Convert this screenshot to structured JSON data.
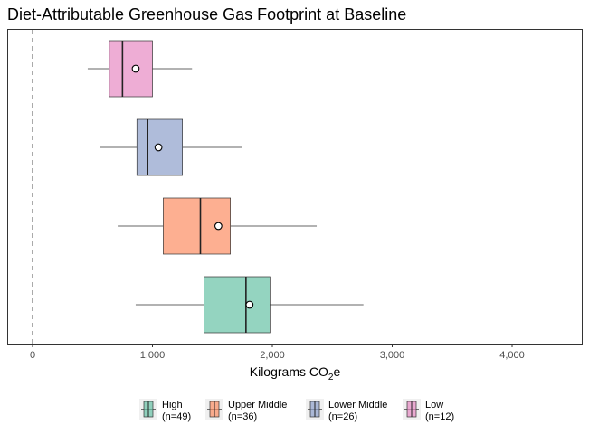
{
  "chart_data": {
    "type": "boxplot",
    "orientation": "horizontal",
    "title": "Diet-Attributable Greenhouse Gas Footprint at Baseline",
    "xlabel": {
      "main": "Kilograms CO",
      "sub": "2",
      "tail": "e"
    },
    "ylabel": "",
    "xlim": [
      -200,
      4600
    ],
    "xticks": [
      0,
      1000,
      2000,
      3000,
      4000
    ],
    "xtick_labels": [
      "0",
      "1,000",
      "2,000",
      "3,000",
      "4,000"
    ],
    "reference_line": {
      "x": 0,
      "style": "dashed"
    },
    "grid": false,
    "legend_position": "bottom",
    "series": [
      {
        "label_line1": "Low",
        "label_line2": "(n=12)",
        "color": "#e78ac3",
        "whisker_low": 460,
        "q1": 640,
        "median": 750,
        "q3": 1000,
        "whisker_high": 1330,
        "mean": 860
      },
      {
        "label_line1": "Lower Middle",
        "label_line2": "(n=26)",
        "color": "#8da0cb",
        "whisker_low": 560,
        "q1": 870,
        "median": 960,
        "q3": 1250,
        "whisker_high": 1750,
        "mean": 1050
      },
      {
        "label_line1": "Upper Middle",
        "label_line2": "(n=36)",
        "color": "#fc8d62",
        "whisker_low": 710,
        "q1": 1090,
        "median": 1400,
        "q3": 1650,
        "whisker_high": 2370,
        "mean": 1550
      },
      {
        "label_line1": "High",
        "label_line2": "(n=49)",
        "color": "#66c2a5",
        "whisker_low": 860,
        "q1": 1430,
        "median": 1780,
        "q3": 1980,
        "whisker_high": 2760,
        "mean": 1810
      }
    ],
    "legend_order": [
      "High",
      "Upper Middle",
      "Lower Middle",
      "Low"
    ]
  }
}
